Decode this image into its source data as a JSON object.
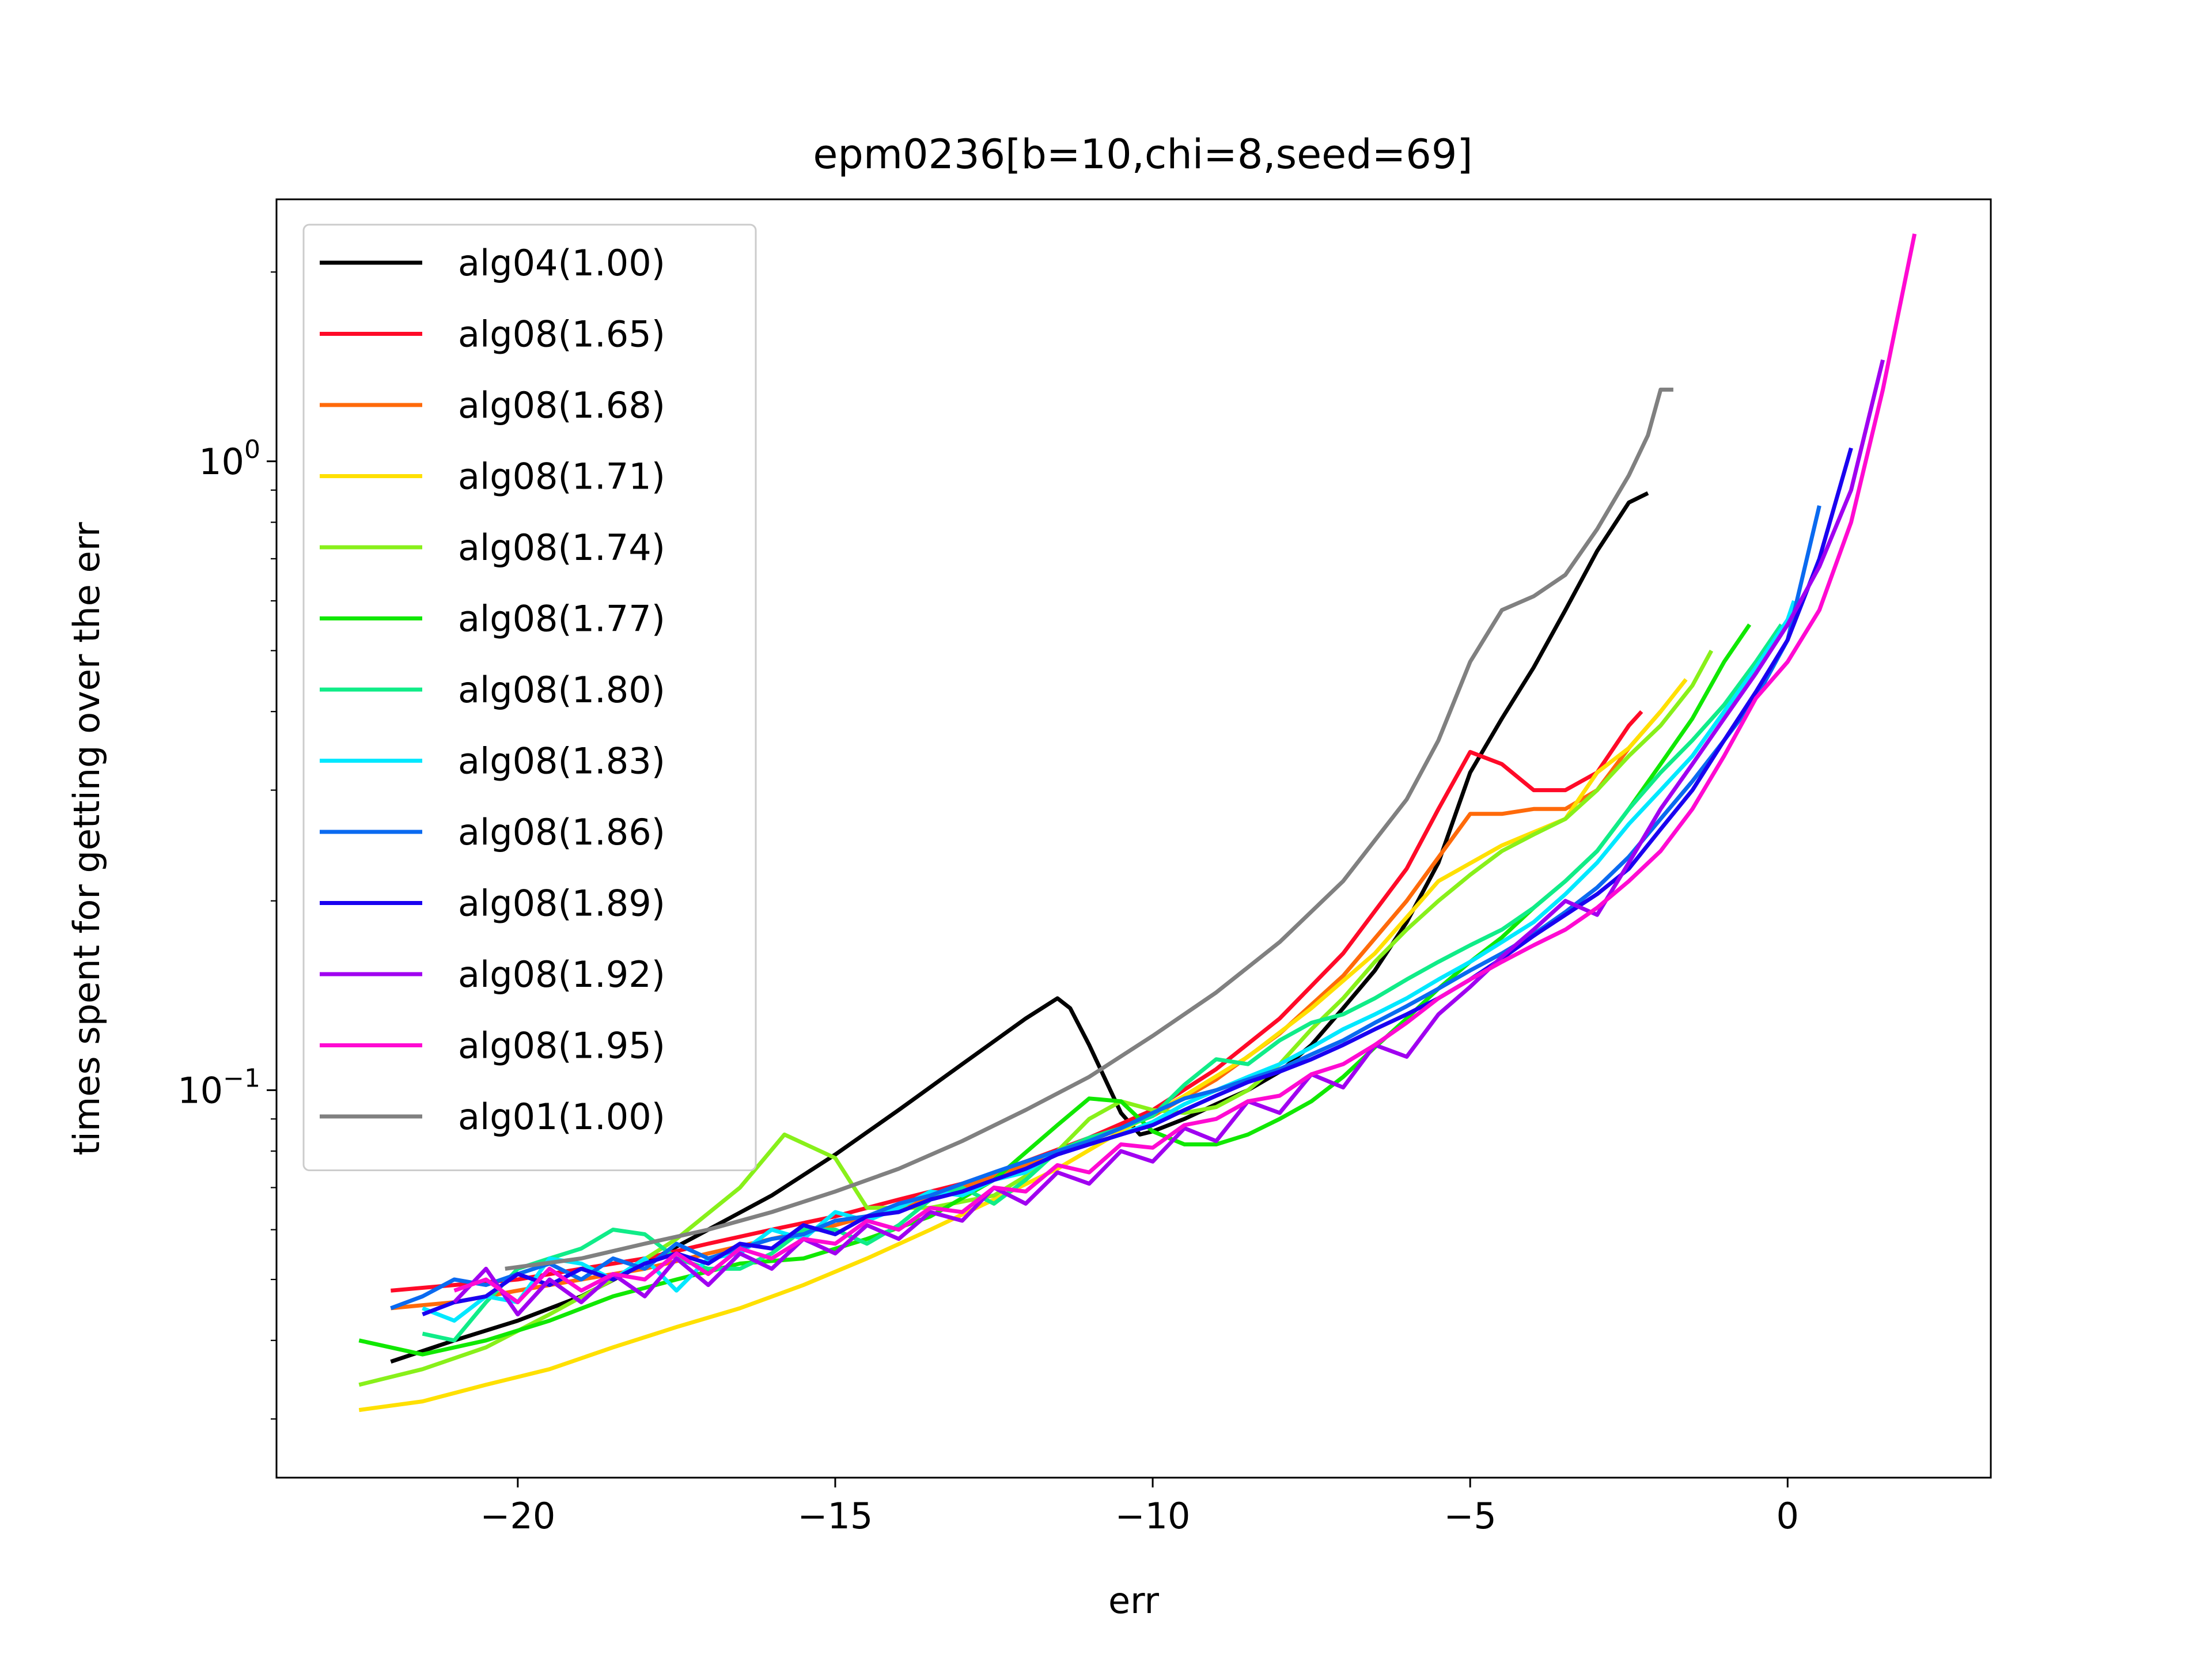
{
  "chart_data": {
    "type": "line",
    "title": "epm0236[b=10,chi=8,seed=69]",
    "xlabel": "err",
    "ylabel": "times spent for getting over the err",
    "xlim": [
      -23.8,
      3.2
    ],
    "ylim": [
      0.0242,
      2.61
    ],
    "yscale": "log",
    "grid": false,
    "legend_position": "upper left",
    "x_ticks": [
      {
        "value": -20,
        "label": "−20"
      },
      {
        "value": -15,
        "label": "−15"
      },
      {
        "value": -10,
        "label": "−10"
      },
      {
        "value": -5,
        "label": "−5"
      },
      {
        "value": 0,
        "label": "0"
      }
    ],
    "y_ticks": [
      {
        "value": 0.1,
        "label": "10",
        "sup": "−1"
      },
      {
        "value": 1.0,
        "label": "10",
        "sup": "0"
      }
    ],
    "series": [
      {
        "name": "alg04(1.00)",
        "color": "#000000",
        "x": [
          -22,
          -21,
          -20,
          -19,
          -18,
          -17,
          -16,
          -15,
          -14,
          -13,
          -12,
          -11.5,
          -11.3,
          -11,
          -10.5,
          -10.2,
          -10,
          -9.5,
          -9,
          -8.5,
          -8,
          -7.5,
          -7,
          -6.5,
          -6,
          -5.5,
          -5,
          -4.5,
          -4,
          -3.5,
          -3,
          -2.5,
          -2.2
        ],
        "y": [
          0.037,
          0.04,
          0.043,
          0.047,
          0.053,
          0.06,
          0.068,
          0.079,
          0.093,
          0.11,
          0.13,
          0.14,
          0.135,
          0.118,
          0.092,
          0.085,
          0.086,
          0.09,
          0.095,
          0.1,
          0.107,
          0.118,
          0.135,
          0.155,
          0.185,
          0.23,
          0.32,
          0.39,
          0.47,
          0.58,
          0.72,
          0.86,
          0.89
        ]
      },
      {
        "name": "alg08(1.65)",
        "color": "#ff0a28",
        "x": [
          -22,
          -21,
          -20,
          -19,
          -18,
          -17,
          -16,
          -15,
          -14,
          -13,
          -12,
          -11,
          -10,
          -9,
          -8,
          -7,
          -6,
          -5.5,
          -5,
          -4.5,
          -4,
          -3.5,
          -3,
          -2.5,
          -2.3
        ],
        "y": [
          0.048,
          0.049,
          0.05,
          0.052,
          0.054,
          0.057,
          0.06,
          0.063,
          0.067,
          0.071,
          0.077,
          0.084,
          0.093,
          0.108,
          0.13,
          0.165,
          0.225,
          0.28,
          0.345,
          0.33,
          0.3,
          0.3,
          0.32,
          0.38,
          0.4
        ]
      },
      {
        "name": "alg08(1.68)",
        "color": "#ff6a0a",
        "x": [
          -22,
          -21,
          -20,
          -19,
          -18,
          -17,
          -16,
          -15,
          -14,
          -13,
          -12,
          -11,
          -10,
          -9,
          -8,
          -7,
          -6,
          -5,
          -4.5,
          -4,
          -3.5,
          -3,
          -2.5,
          -2.0
        ],
        "y": [
          0.045,
          0.046,
          0.048,
          0.05,
          0.052,
          0.055,
          0.058,
          0.061,
          0.065,
          0.07,
          0.076,
          0.083,
          0.091,
          0.104,
          0.123,
          0.152,
          0.2,
          0.275,
          0.275,
          0.28,
          0.28,
          0.3,
          0.35,
          0.4
        ]
      },
      {
        "name": "alg08(1.71)",
        "color": "#ffe000",
        "x": [
          -22.5,
          -21.5,
          -20.5,
          -19.5,
          -18.5,
          -17.5,
          -16.5,
          -15.5,
          -14.5,
          -13.5,
          -12.5,
          -11.5,
          -10.5,
          -9.5,
          -8.5,
          -7.5,
          -6.5,
          -5.5,
          -4.5,
          -3.5,
          -3,
          -2.5,
          -2,
          -1.6
        ],
        "y": [
          0.031,
          0.032,
          0.034,
          0.036,
          0.039,
          0.042,
          0.045,
          0.049,
          0.054,
          0.06,
          0.067,
          0.075,
          0.086,
          0.098,
          0.113,
          0.135,
          0.165,
          0.215,
          0.245,
          0.27,
          0.32,
          0.35,
          0.4,
          0.45
        ]
      },
      {
        "name": "alg08(1.74)",
        "color": "#88f01a",
        "x": [
          -22.5,
          -21.5,
          -20.5,
          -19.5,
          -18.5,
          -17.5,
          -16.5,
          -15.8,
          -15,
          -14.5,
          -13.5,
          -12.5,
          -12,
          -11.5,
          -11,
          -10.5,
          -10,
          -9.5,
          -9,
          -8.5,
          -8,
          -7.5,
          -7,
          -6.5,
          -6,
          -5.5,
          -5,
          -4.5,
          -4,
          -3.5,
          -3,
          -2.5,
          -2,
          -1.5,
          -1.2
        ],
        "y": [
          0.034,
          0.036,
          0.039,
          0.044,
          0.05,
          0.058,
          0.07,
          0.085,
          0.078,
          0.065,
          0.065,
          0.068,
          0.073,
          0.08,
          0.09,
          0.096,
          0.093,
          0.092,
          0.094,
          0.1,
          0.11,
          0.125,
          0.14,
          0.16,
          0.18,
          0.2,
          0.22,
          0.24,
          0.255,
          0.27,
          0.3,
          0.34,
          0.38,
          0.44,
          0.5
        ]
      },
      {
        "name": "alg08(1.77)",
        "color": "#10e800",
        "x": [
          -22.5,
          -21.5,
          -20.5,
          -19.5,
          -18.5,
          -17.5,
          -16.5,
          -15.5,
          -14.5,
          -13.5,
          -12.5,
          -11.5,
          -11,
          -10.5,
          -10,
          -9.5,
          -9,
          -8.5,
          -8,
          -7.5,
          -7,
          -6.5,
          -6,
          -5.5,
          -5,
          -4.5,
          -4,
          -3.5,
          -3,
          -2.5,
          -2,
          -1.5,
          -1,
          -0.6
        ],
        "y": [
          0.04,
          0.038,
          0.04,
          0.043,
          0.047,
          0.05,
          0.053,
          0.054,
          0.058,
          0.063,
          0.072,
          0.088,
          0.097,
          0.096,
          0.086,
          0.082,
          0.082,
          0.085,
          0.09,
          0.096,
          0.105,
          0.117,
          0.13,
          0.145,
          0.16,
          0.175,
          0.195,
          0.215,
          0.24,
          0.28,
          0.33,
          0.39,
          0.48,
          0.55
        ]
      },
      {
        "name": "alg08(1.80)",
        "color": "#10ec88",
        "x": [
          -21.5,
          -21,
          -20.5,
          -20,
          -19.5,
          -19,
          -18.5,
          -18,
          -17.5,
          -17,
          -16.5,
          -16,
          -15.5,
          -15,
          -14.5,
          -14,
          -13.5,
          -13,
          -12.5,
          -12,
          -11.5,
          -11,
          -10.5,
          -10,
          -9.5,
          -9,
          -8.5,
          -8,
          -7.5,
          -7,
          -6.5,
          -6,
          -5.5,
          -5,
          -4.5,
          -4,
          -3.5,
          -3,
          -2.5,
          -2,
          -1.5,
          -1,
          -0.5,
          -0.1
        ],
        "y": [
          0.041,
          0.04,
          0.046,
          0.052,
          0.054,
          0.056,
          0.06,
          0.059,
          0.054,
          0.052,
          0.052,
          0.055,
          0.06,
          0.06,
          0.057,
          0.061,
          0.067,
          0.07,
          0.066,
          0.072,
          0.08,
          0.084,
          0.087,
          0.091,
          0.102,
          0.112,
          0.11,
          0.12,
          0.128,
          0.132,
          0.14,
          0.15,
          0.16,
          0.17,
          0.18,
          0.195,
          0.215,
          0.24,
          0.28,
          0.32,
          0.36,
          0.41,
          0.48,
          0.55
        ]
      },
      {
        "name": "alg08(1.83)",
        "color": "#00e8ff",
        "x": [
          -21.5,
          -21,
          -20.5,
          -20,
          -19.5,
          -19,
          -18.5,
          -18,
          -17.5,
          -17,
          -16.5,
          -16,
          -15.5,
          -15,
          -14.5,
          -14,
          -13.5,
          -13,
          -12.5,
          -12,
          -11.5,
          -11,
          -10.5,
          -10,
          -9.5,
          -9,
          -8.5,
          -8,
          -7.5,
          -7,
          -6.5,
          -6,
          -5.5,
          -5,
          -4.5,
          -4,
          -3.5,
          -3,
          -2.5,
          -2,
          -1.5,
          -1,
          -0.5,
          0,
          0.1
        ],
        "y": [
          0.045,
          0.043,
          0.047,
          0.046,
          0.054,
          0.053,
          0.05,
          0.054,
          0.048,
          0.054,
          0.055,
          0.06,
          0.058,
          0.064,
          0.062,
          0.065,
          0.069,
          0.068,
          0.072,
          0.074,
          0.08,
          0.082,
          0.085,
          0.089,
          0.095,
          0.1,
          0.105,
          0.11,
          0.117,
          0.125,
          0.132,
          0.14,
          0.15,
          0.16,
          0.172,
          0.185,
          0.205,
          0.23,
          0.265,
          0.3,
          0.34,
          0.4,
          0.47,
          0.56,
          0.6
        ]
      },
      {
        "name": "alg08(1.86)",
        "color": "#0a6af0",
        "x": [
          -22,
          -21.5,
          -21,
          -20.5,
          -20,
          -19.5,
          -19,
          -18.5,
          -18,
          -17.5,
          -17,
          -16.5,
          -16,
          -15.5,
          -15,
          -14.5,
          -14,
          -13.5,
          -13,
          -12.5,
          -12,
          -11.5,
          -11,
          -10.5,
          -10,
          -9.5,
          -9,
          -8.5,
          -8,
          -7.5,
          -7,
          -6.5,
          -6,
          -5.5,
          -5,
          -4.5,
          -4,
          -3.5,
          -3,
          -2.5,
          -2,
          -1.5,
          -1,
          -0.5,
          0,
          0.5
        ],
        "y": [
          0.045,
          0.047,
          0.05,
          0.049,
          0.051,
          0.053,
          0.05,
          0.054,
          0.052,
          0.057,
          0.054,
          0.056,
          0.058,
          0.059,
          0.062,
          0.063,
          0.066,
          0.068,
          0.071,
          0.074,
          0.077,
          0.08,
          0.083,
          0.087,
          0.092,
          0.097,
          0.1,
          0.104,
          0.108,
          0.114,
          0.12,
          0.128,
          0.136,
          0.145,
          0.155,
          0.165,
          0.177,
          0.192,
          0.21,
          0.235,
          0.27,
          0.31,
          0.36,
          0.42,
          0.52,
          0.85
        ]
      },
      {
        "name": "alg08(1.89)",
        "color": "#1a00f0",
        "x": [
          -21.5,
          -21,
          -20.5,
          -20,
          -19.5,
          -19,
          -18.5,
          -18,
          -17.5,
          -17,
          -16.5,
          -16,
          -15.5,
          -15,
          -14.5,
          -14,
          -13.5,
          -13,
          -12.5,
          -12,
          -11.5,
          -11,
          -10.5,
          -10,
          -9.5,
          -9,
          -8.5,
          -8,
          -7.5,
          -7,
          -6.5,
          -6,
          -5.5,
          -5,
          -4.5,
          -4,
          -3.5,
          -3,
          -2.5,
          -2,
          -1.5,
          -1,
          -0.5,
          0,
          0.5,
          1
        ],
        "y": [
          0.044,
          0.046,
          0.047,
          0.051,
          0.049,
          0.052,
          0.05,
          0.053,
          0.055,
          0.053,
          0.057,
          0.056,
          0.061,
          0.059,
          0.063,
          0.064,
          0.067,
          0.069,
          0.072,
          0.075,
          0.079,
          0.082,
          0.085,
          0.088,
          0.093,
          0.098,
          0.103,
          0.107,
          0.112,
          0.118,
          0.125,
          0.132,
          0.14,
          0.15,
          0.162,
          0.176,
          0.19,
          0.205,
          0.225,
          0.26,
          0.3,
          0.36,
          0.43,
          0.52,
          0.7,
          1.05
        ]
      },
      {
        "name": "alg08(1.92)",
        "color": "#a000f0",
        "x": [
          -21,
          -20.5,
          -20,
          -19.5,
          -19,
          -18.5,
          -18,
          -17.5,
          -17,
          -16.5,
          -16,
          -15.5,
          -15,
          -14.5,
          -14,
          -13.5,
          -13,
          -12.5,
          -12,
          -11.5,
          -11,
          -10.5,
          -10,
          -9.5,
          -9,
          -8.5,
          -8,
          -7.5,
          -7,
          -6.5,
          -6,
          -5.5,
          -5,
          -4.5,
          -4,
          -3.5,
          -3,
          -2.5,
          -2,
          -1.5,
          -1,
          -0.5,
          0,
          0.5,
          1,
          1.5
        ],
        "y": [
          0.046,
          0.052,
          0.044,
          0.05,
          0.046,
          0.051,
          0.047,
          0.054,
          0.049,
          0.055,
          0.052,
          0.058,
          0.055,
          0.061,
          0.058,
          0.064,
          0.062,
          0.07,
          0.066,
          0.074,
          0.071,
          0.08,
          0.077,
          0.087,
          0.083,
          0.096,
          0.092,
          0.106,
          0.101,
          0.118,
          0.113,
          0.132,
          0.146,
          0.163,
          0.18,
          0.2,
          0.19,
          0.23,
          0.28,
          0.33,
          0.39,
          0.46,
          0.55,
          0.68,
          0.9,
          1.45
        ]
      },
      {
        "name": "alg08(1.95)",
        "color": "#ff0ad2",
        "x": [
          -21,
          -20.5,
          -20,
          -19.5,
          -19,
          -18.5,
          -18,
          -17.5,
          -17,
          -16.5,
          -16,
          -15.5,
          -15,
          -14.5,
          -14,
          -13.5,
          -13,
          -12.5,
          -12,
          -11.5,
          -11,
          -10.5,
          -10,
          -9.5,
          -9,
          -8.5,
          -8,
          -7.5,
          -7,
          -6.5,
          -6,
          -5.5,
          -5,
          -4.5,
          -4,
          -3.5,
          -3,
          -2.5,
          -2,
          -1.5,
          -1,
          -0.5,
          0,
          0.5,
          1,
          1.5,
          2
        ],
        "y": [
          0.048,
          0.05,
          0.046,
          0.052,
          0.048,
          0.051,
          0.05,
          0.055,
          0.051,
          0.056,
          0.054,
          0.058,
          0.057,
          0.062,
          0.06,
          0.065,
          0.064,
          0.07,
          0.069,
          0.076,
          0.074,
          0.082,
          0.081,
          0.088,
          0.09,
          0.096,
          0.098,
          0.106,
          0.11,
          0.118,
          0.128,
          0.14,
          0.15,
          0.16,
          0.17,
          0.18,
          0.195,
          0.215,
          0.24,
          0.28,
          0.34,
          0.42,
          0.48,
          0.58,
          0.8,
          1.3,
          2.3
        ]
      },
      {
        "name": "alg01(1.00)",
        "color": "#808080",
        "x": [
          -20.2,
          -19,
          -18,
          -17,
          -16,
          -15,
          -14,
          -13,
          -12,
          -11,
          -10,
          -9,
          -8,
          -7,
          -6,
          -5.5,
          -5,
          -4.5,
          -4,
          -3.5,
          -3,
          -2.5,
          -2.2,
          -2,
          -1.8
        ],
        "y": [
          0.052,
          0.054,
          0.057,
          0.06,
          0.064,
          0.069,
          0.075,
          0.083,
          0.093,
          0.105,
          0.122,
          0.143,
          0.172,
          0.215,
          0.29,
          0.36,
          0.48,
          0.58,
          0.61,
          0.66,
          0.78,
          0.95,
          1.1,
          1.3,
          1.3
        ]
      }
    ]
  }
}
